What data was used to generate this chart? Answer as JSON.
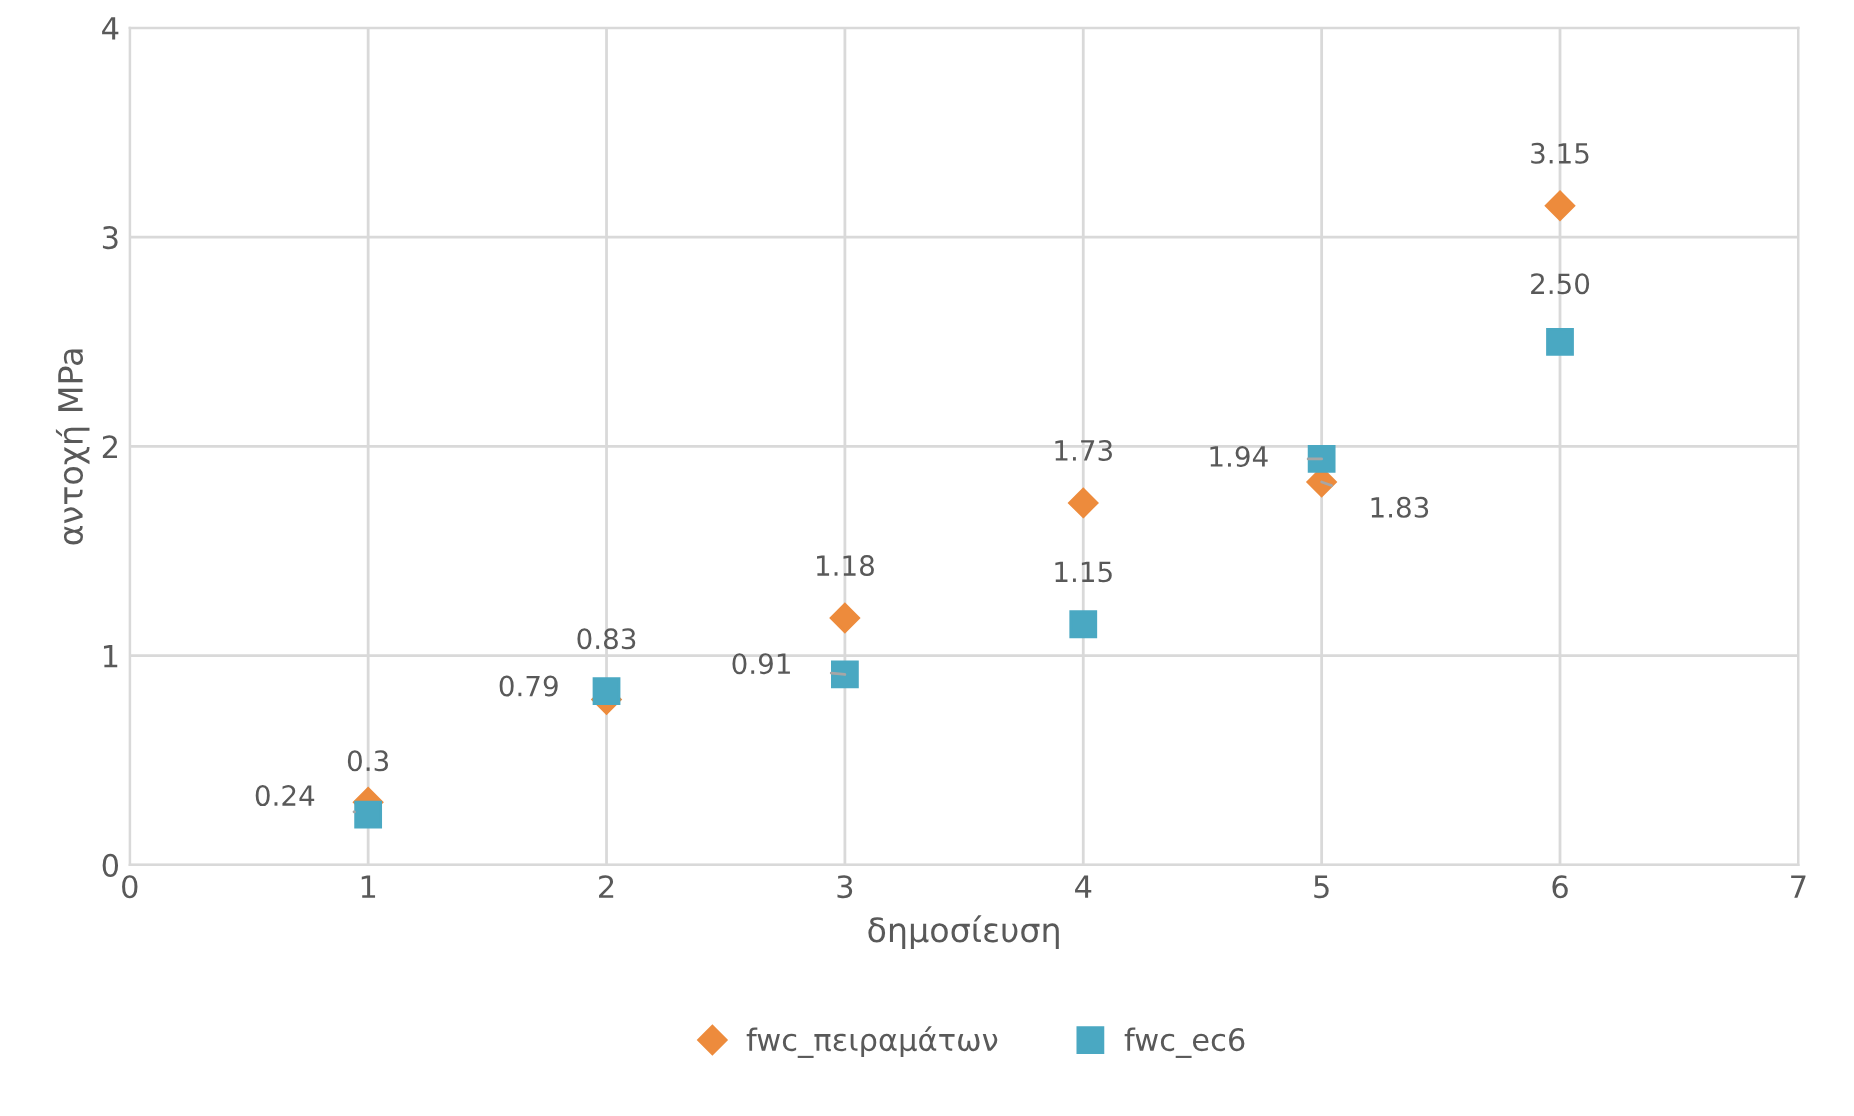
{
  "chart_data": {
    "type": "scatter",
    "xlabel": "δημοσίευση",
    "ylabel": "αντοχή MPa",
    "x": [
      1,
      2,
      3,
      4,
      5,
      6
    ],
    "series": [
      {
        "name": "fwc_πειραμάτων",
        "color": "#ed8b3c",
        "marker": "diamond",
        "values": [
          0.3,
          0.79,
          1.18,
          1.73,
          1.83,
          3.15
        ],
        "value_labels": [
          "0.3",
          "0.79",
          "1.18",
          "1.73",
          "1.83",
          "3.15"
        ]
      },
      {
        "name": "fwc_ec6",
        "color": "#4aa8c2",
        "marker": "square",
        "values": [
          0.24,
          0.83,
          0.91,
          1.15,
          1.94,
          2.5
        ],
        "value_labels": [
          "0.24",
          "0.83",
          "0.91",
          "1.15",
          "1.94",
          "2.50"
        ]
      }
    ],
    "xlim": [
      0,
      7
    ],
    "ylim": [
      0,
      4
    ],
    "xticks": [
      0,
      1,
      2,
      3,
      4,
      5,
      6,
      7
    ],
    "yticks": [
      0,
      1,
      2,
      3,
      4
    ],
    "grid": true,
    "legend": "bottom"
  }
}
